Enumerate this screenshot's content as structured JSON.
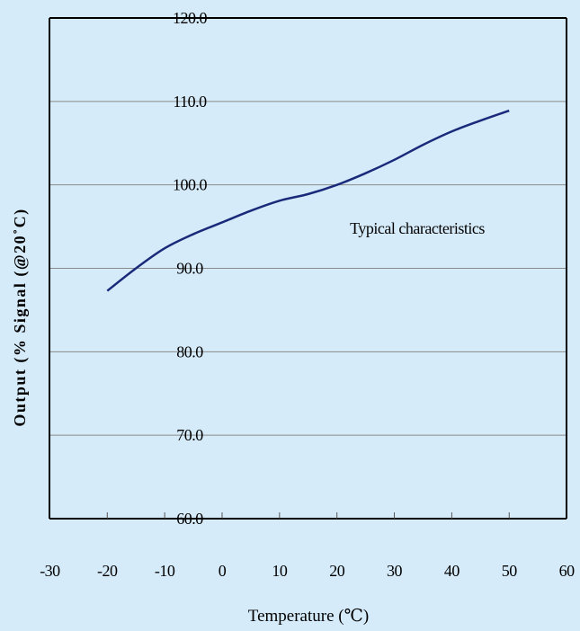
{
  "colors": {
    "background": "#d6ebfa",
    "line": "#1a2a7a",
    "grid": "#8a8a8a",
    "axis": "#000000"
  },
  "chart_data": {
    "type": "line",
    "title": "",
    "xlabel": "Temperature (℃)",
    "ylabel": "Output (% Signal (@20˚C)",
    "xlim": [
      -30,
      60
    ],
    "ylim": [
      60,
      120
    ],
    "grid": true,
    "x_ticks": [
      "-30",
      "-20",
      "-10",
      "0",
      "10",
      "20",
      "30",
      "40",
      "50",
      "60"
    ],
    "y_ticks": [
      "60.0",
      "70.0",
      "80.0",
      "90.0",
      "100.0",
      "110.0",
      "120.0"
    ],
    "annotation": "Typical characteristics",
    "series": [
      {
        "x": [
          -20,
          -15,
          -10,
          -5,
          0,
          5,
          10,
          15,
          20,
          25,
          30,
          35,
          40,
          45,
          50
        ],
        "y": [
          87.3,
          90.0,
          92.4,
          94.1,
          95.5,
          96.9,
          98.1,
          98.9,
          100.0,
          101.4,
          103.0,
          104.8,
          106.4,
          107.7,
          108.9
        ]
      }
    ]
  }
}
